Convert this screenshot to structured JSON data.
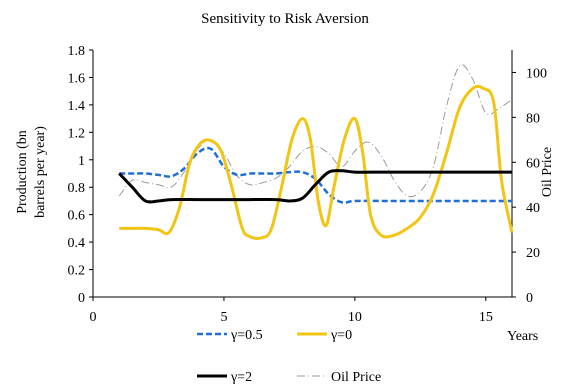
{
  "chart_data": {
    "type": "line",
    "title": "Sensitivity to Risk Aversion",
    "xlabel": "Years",
    "ylabel": "Production (bn barrels per year)",
    "ylabel_lines": [
      "Production (bn",
      "barrels per year)"
    ],
    "y2label": "Oil Price",
    "xlim": [
      0,
      16
    ],
    "ylim": [
      0,
      1.8
    ],
    "y2lim": [
      0,
      110
    ],
    "x_ticks": [
      "0",
      "5",
      "10",
      "15"
    ],
    "y_ticks": [
      "0",
      "0.2",
      "0.4",
      "0.6",
      "0.8",
      "1",
      "1.2",
      "1.4",
      "1.6",
      "1.8"
    ],
    "y2_ticks": [
      "0",
      "20",
      "40",
      "60",
      "80",
      "100"
    ],
    "grid": false,
    "legend_placement": "bottom",
    "series": [
      {
        "name": "γ=0.5",
        "axis": "left",
        "color": "#1f6fd6",
        "style": "dashed",
        "x": [
          1,
          1.5,
          2,
          2.5,
          3,
          3.5,
          4,
          4.5,
          5,
          5.5,
          6,
          6.5,
          7,
          7.5,
          8,
          8.5,
          9,
          9.5,
          10,
          11,
          12,
          13,
          14,
          15,
          16
        ],
        "values": [
          0.9,
          0.9,
          0.9,
          0.89,
          0.88,
          0.94,
          1.05,
          1.08,
          0.95,
          0.89,
          0.9,
          0.9,
          0.9,
          0.91,
          0.91,
          0.86,
          0.75,
          0.69,
          0.7,
          0.7,
          0.7,
          0.7,
          0.7,
          0.7,
          0.7
        ]
      },
      {
        "name": "γ=0",
        "axis": "left",
        "color": "#f2c413",
        "style": "solid",
        "x": [
          1,
          1.5,
          2,
          2.5,
          2.9,
          3.3,
          3.7,
          4.1,
          4.5,
          4.9,
          5.3,
          5.7,
          6,
          6.4,
          6.8,
          7.2,
          7.6,
          8,
          8.3,
          8.6,
          8.9,
          9.2,
          9.6,
          10,
          10.3,
          10.6,
          11,
          11.5,
          12,
          12.5,
          13,
          13.5,
          14,
          14.5,
          14.9,
          15.3,
          15.6,
          16
        ],
        "values": [
          0.5,
          0.5,
          0.5,
          0.49,
          0.47,
          0.65,
          0.98,
          1.12,
          1.14,
          1.06,
          0.8,
          0.5,
          0.44,
          0.43,
          0.49,
          0.8,
          1.15,
          1.3,
          1.15,
          0.7,
          0.52,
          0.8,
          1.15,
          1.3,
          1.05,
          0.6,
          0.45,
          0.45,
          0.5,
          0.58,
          0.75,
          1.05,
          1.38,
          1.52,
          1.52,
          1.42,
          0.85,
          0.47
        ]
      },
      {
        "name": "γ=2",
        "axis": "left",
        "color": "#000000",
        "style": "solid",
        "x": [
          1,
          1.5,
          2,
          2.5,
          3,
          4,
          5,
          6,
          7,
          7.5,
          8,
          8.5,
          9,
          9.5,
          10,
          11,
          12,
          13,
          14,
          15,
          16
        ],
        "values": [
          0.9,
          0.8,
          0.7,
          0.7,
          0.71,
          0.71,
          0.71,
          0.71,
          0.71,
          0.7,
          0.72,
          0.82,
          0.91,
          0.92,
          0.91,
          0.91,
          0.91,
          0.91,
          0.91,
          0.91,
          0.91
        ]
      },
      {
        "name": "Oil Price",
        "axis": "right",
        "color": "#9a9a9a",
        "style": "dashdot",
        "x": [
          1,
          1.5,
          2,
          2.5,
          3,
          3.5,
          4,
          4.5,
          5,
          5.5,
          6,
          6.5,
          7,
          7.5,
          8,
          8.5,
          9,
          9.5,
          10,
          10.5,
          11,
          11.5,
          12,
          12.5,
          13,
          13.5,
          14,
          14.5,
          15,
          15.5,
          16
        ],
        "values": [
          45,
          52,
          51,
          50,
          49,
          56,
          66,
          70,
          64,
          54,
          50,
          51,
          53,
          58,
          65,
          67,
          64,
          58,
          65,
          69,
          63,
          52,
          45,
          47,
          58,
          85,
          103,
          97,
          82,
          84,
          88
        ]
      }
    ]
  }
}
